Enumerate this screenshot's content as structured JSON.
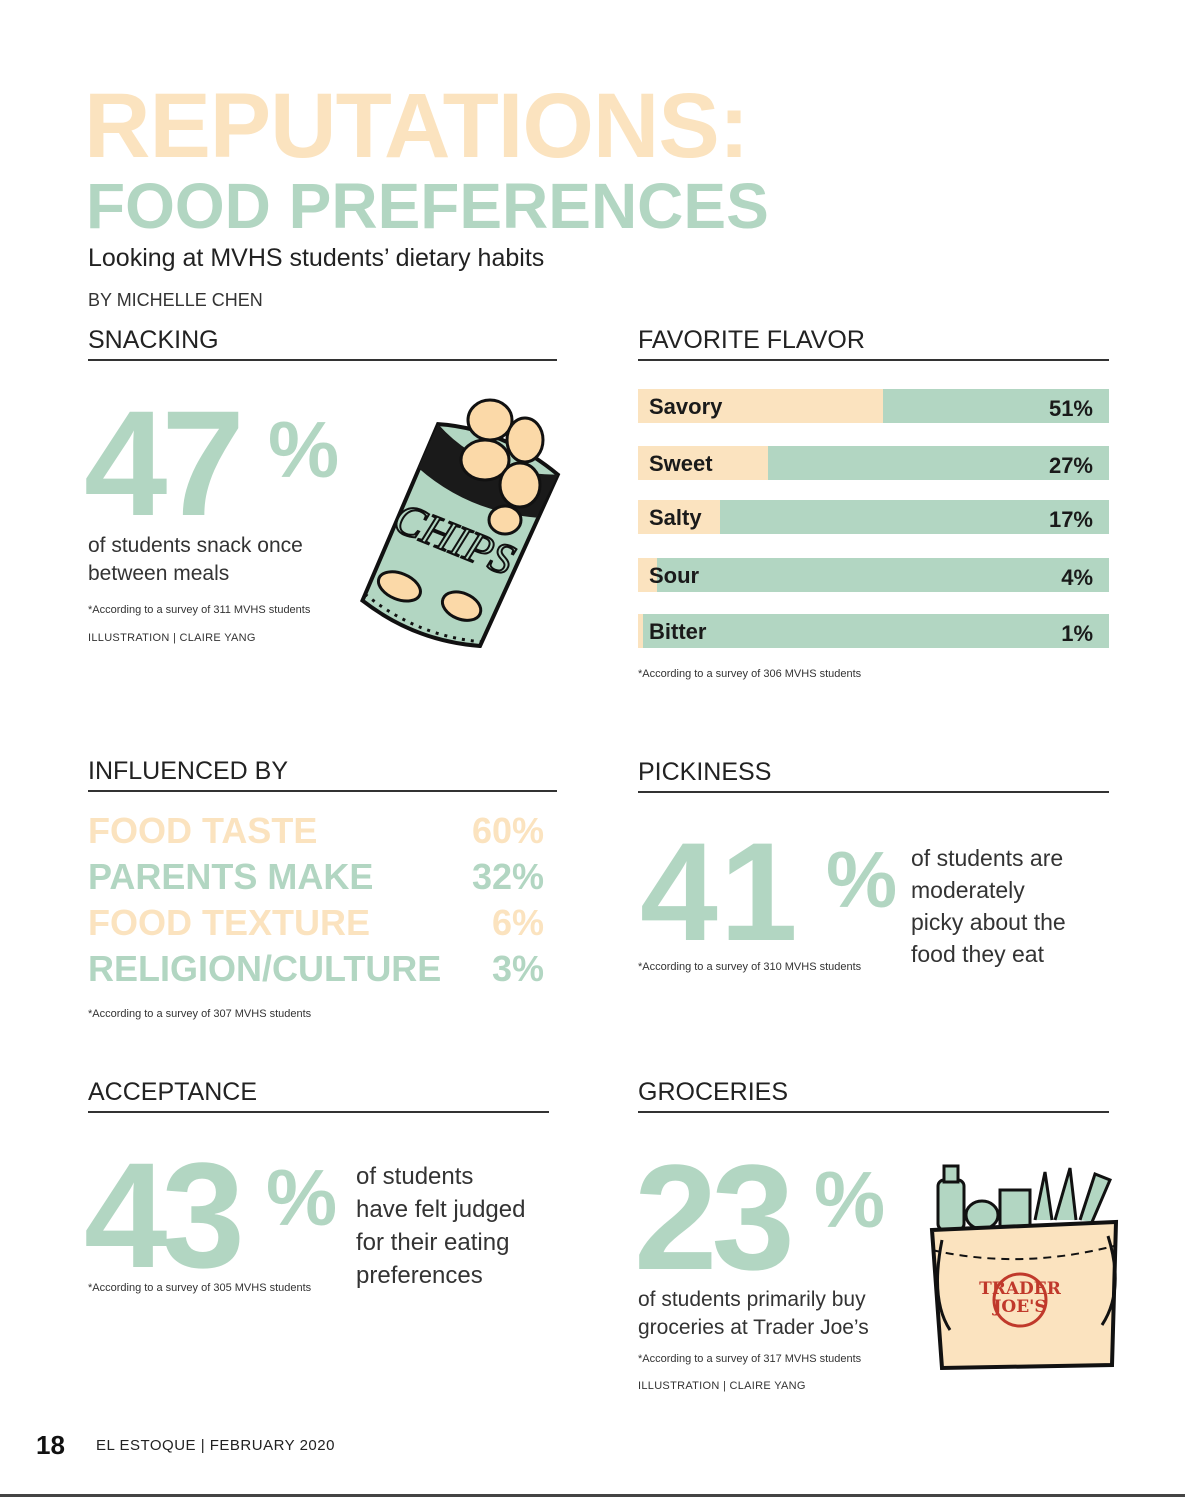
{
  "header": {
    "title_line1": "REPUTATIONS:",
    "title_line2": "FOOD PREFERENCES",
    "subtitle": "Looking at MVHS students’ dietary habits",
    "byline": "BY MICHELLE CHEN"
  },
  "colors": {
    "peach": "#fbe3bf",
    "mint": "#b2d6c2",
    "ink": "#222222"
  },
  "snacking": {
    "heading": "SNACKING",
    "number": "47",
    "percent_sign": "%",
    "description_line1": "of students snack once",
    "description_line2": "between meals",
    "footnote": "*According to a survey of 311 MVHS students",
    "credit": "ILLUSTRATION | CLAIRE YANG",
    "illustration": "chips-bag-icon",
    "illustration_text": "CHIPS"
  },
  "favorite_flavor": {
    "heading": "FAVORITE FLAVOR",
    "footnote": "*According to a survey of 306 MVHS students"
  },
  "influenced_by": {
    "heading": "INFLUENCED BY",
    "items": [
      {
        "label": "FOOD TASTE",
        "value": "60%"
      },
      {
        "label": "PARENTS MAKE",
        "value": "32%"
      },
      {
        "label": "FOOD TEXTURE",
        "value": "6%"
      },
      {
        "label": "RELIGION/CULTURE",
        "value": "3%"
      }
    ],
    "footnote": "*According to a survey of 307 MVHS students"
  },
  "pickiness": {
    "heading": "PICKINESS",
    "number": "41",
    "percent_sign": "%",
    "description_lines": [
      "of students are",
      "moderately",
      "picky about the",
      "food they eat"
    ],
    "footnote": "*According to a survey of 310 MVHS students"
  },
  "acceptance": {
    "heading": "ACCEPTANCE",
    "number": "43",
    "percent_sign": "%",
    "description_lines": [
      "of students",
      "have felt judged",
      "for their eating",
      "preferences"
    ],
    "footnote": "*According to a survey of 305 MVHS students"
  },
  "groceries": {
    "heading": "GROCERIES",
    "number": "23",
    "percent_sign": "%",
    "description_line1": "of students primarily buy",
    "description_line2": "groceries at Trader Joe’s",
    "footnote": "*According to a survey of 317 MVHS students",
    "credit": "ILLUSTRATION | CLAIRE YANG",
    "illustration": "grocery-bag-icon",
    "bag_text_line1": "TRADER",
    "bag_text_line2": "JOE'S"
  },
  "footer": {
    "page_number": "18",
    "publication": "EL ESTOQUE | FEBRUARY 2020"
  },
  "chart_data": {
    "type": "bar",
    "orientation": "horizontal",
    "categories": [
      "Savory",
      "Sweet",
      "Salty",
      "Sour",
      "Bitter"
    ],
    "values": [
      51,
      27,
      17,
      4,
      1
    ],
    "value_labels": [
      "51%",
      "27%",
      "17%",
      "4%",
      "1%"
    ],
    "unit": "%"
  }
}
